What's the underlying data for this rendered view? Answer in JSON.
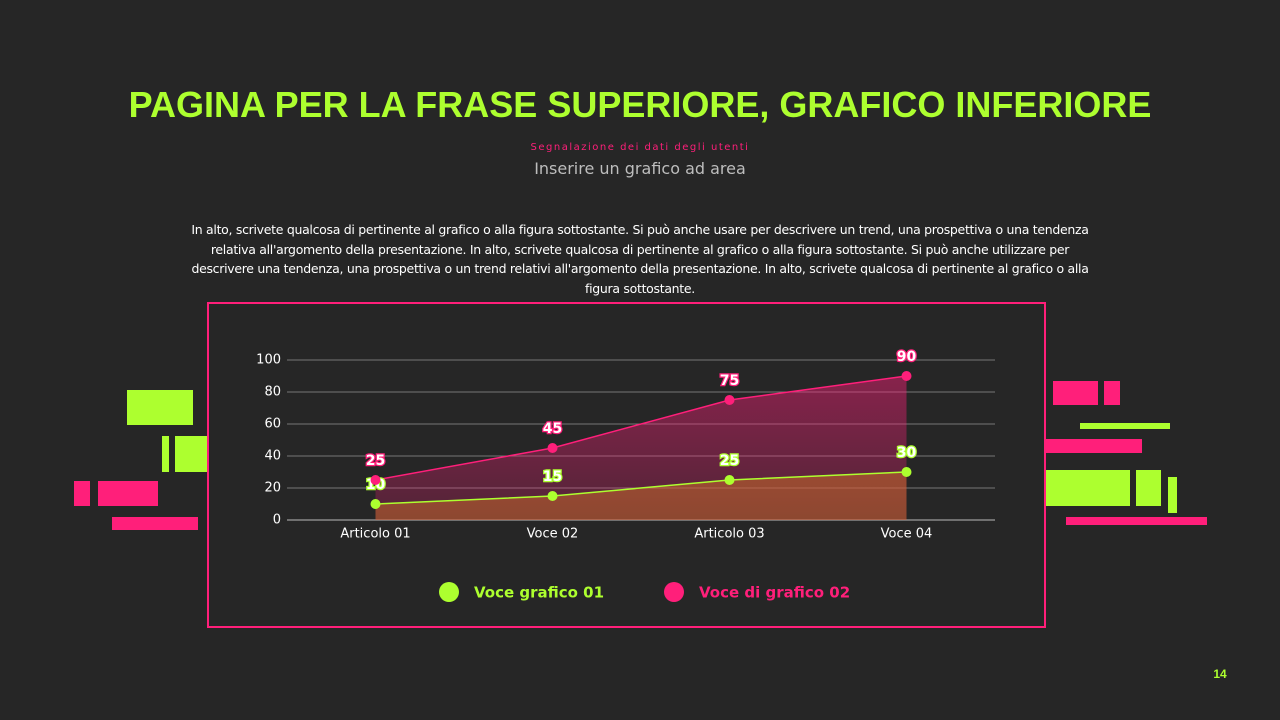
{
  "title": "PAGINA PER LA FRASE SUPERIORE, GRAFICO INFERIORE",
  "kicker": "Segnalazione dei dati degli utenti",
  "subtitle": "Inserire un grafico ad area",
  "body": "In alto, scrivete qualcosa di pertinente al grafico o alla figura sottostante. Si può anche usare per descrivere un trend, una prospettiva o una tendenza relativa all'argomento della presentazione. In alto, scrivete qualcosa di pertinente al grafico o alla figura sottostante. Si può anche utilizzare per descrivere una tendenza, una prospettiva o un trend relativi all'argomento della presentazione. In alto, scrivete qualcosa di pertinente al grafico o alla figura sottostante.",
  "page_number": "14",
  "chart_data": {
    "type": "area",
    "categories": [
      "Articolo 01",
      "Voce 02",
      "Articolo 03",
      "Voce 04"
    ],
    "series": [
      {
        "name": "Voce grafico 01",
        "color": "#adff2f",
        "values": [
          10,
          15,
          25,
          30
        ]
      },
      {
        "name": "Voce di grafico 02",
        "color": "#ff1f7a",
        "values": [
          25,
          45,
          75,
          90
        ]
      }
    ],
    "ylim": [
      0,
      100
    ],
    "yticks": [
      0,
      20,
      40,
      60,
      80,
      100
    ],
    "grid": true
  }
}
